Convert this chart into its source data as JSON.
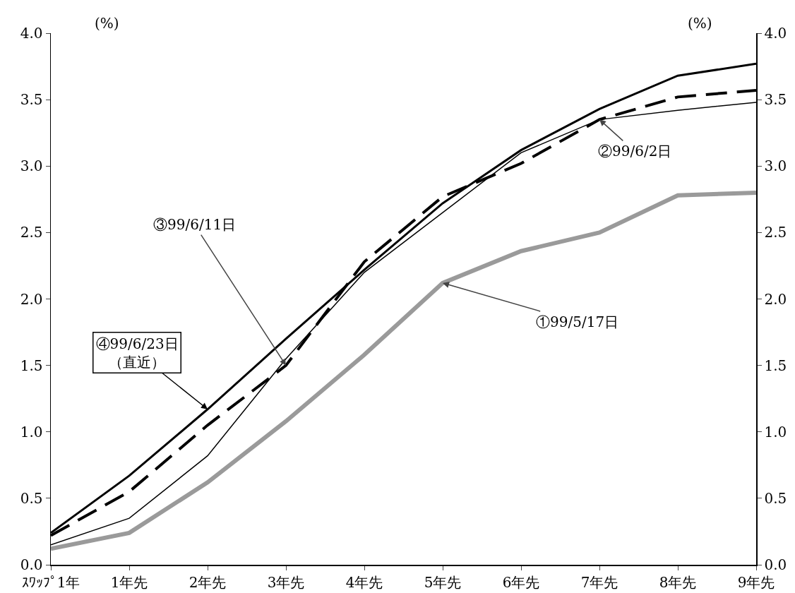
{
  "chart_data": {
    "type": "line",
    "ylabel": "(%)",
    "y2label": "(%)",
    "categories": [
      "ｽﾜｯﾌﾟ1年",
      "1年先",
      "2年先",
      "3年先",
      "4年先",
      "5年先",
      "6年先",
      "7年先",
      "8年先",
      "9年先"
    ],
    "series": [
      {
        "color": "#9a9a9a",
        "line_style": "solid",
        "values": [
          0.12,
          0.24,
          0.62,
          1.08,
          1.58,
          2.12,
          2.36,
          2.5,
          2.78,
          2.8
        ]
      },
      {
        "color": "#000000",
        "line_style": "solid",
        "values": [
          0.15,
          0.35,
          0.82,
          1.55,
          2.2,
          2.65,
          3.1,
          3.35,
          3.42,
          3.48
        ]
      },
      {
        "color": "#000000",
        "line_style": "dashed",
        "values": [
          0.22,
          0.55,
          1.05,
          1.5,
          2.28,
          2.77,
          3.02,
          3.35,
          3.52,
          3.57
        ]
      },
      {
        "color": "#000000",
        "line_style": "solid",
        "values": [
          0.24,
          0.67,
          1.17,
          1.7,
          2.22,
          2.72,
          3.12,
          3.43,
          3.68,
          3.77
        ]
      }
    ],
    "ylim": [
      0,
      4
    ],
    "yticks": [
      {
        "value": 0,
        "label": "0.0"
      },
      {
        "value": 0.5,
        "label": "0.5"
      },
      {
        "value": 1,
        "label": "1.0"
      },
      {
        "value": 1.5,
        "label": "1.5"
      },
      {
        "value": 2,
        "label": "2.0"
      },
      {
        "value": 2.5,
        "label": "2.5"
      },
      {
        "value": 3,
        "label": "3.0"
      },
      {
        "value": 3.5,
        "label": "3.5"
      },
      {
        "value": 4,
        "label": "4.0"
      }
    ],
    "y2lim": [
      0,
      4
    ],
    "y2ticks": [
      {
        "value": 0,
        "label": "0.0"
      },
      {
        "value": 0.5,
        "label": "0.5"
      },
      {
        "value": 1,
        "label": "1.0"
      },
      {
        "value": 1.5,
        "label": "1.5"
      },
      {
        "value": 2,
        "label": "2.0"
      },
      {
        "value": 2.5,
        "label": "2.5"
      },
      {
        "value": 3,
        "label": "3.0"
      },
      {
        "value": 3.5,
        "label": "3.5"
      },
      {
        "value": 4,
        "label": "4.0"
      }
    ],
    "grid": false,
    "marker": "none",
    "annotations": [
      {
        "text": "①99/5/17日",
        "x": "5年先",
        "y": 2.12
      },
      {
        "text": "②99/6/2日",
        "x": "7年先",
        "y": 3.35
      },
      {
        "text": "③99/6/11日",
        "x": "3年先",
        "y": 1.5
      },
      {
        "text": "④99/6/23日（直近）",
        "x": "2年先",
        "y": 1.17
      }
    ]
  }
}
